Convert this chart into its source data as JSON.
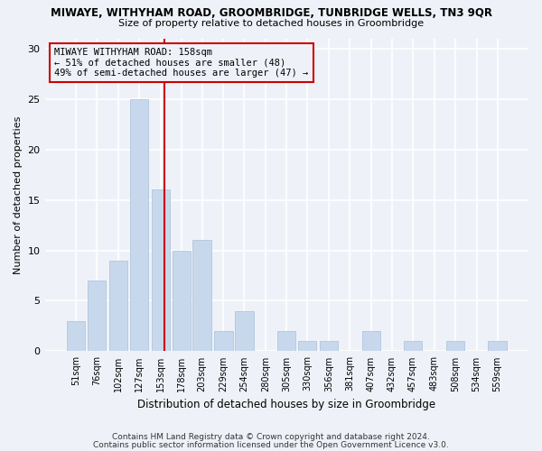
{
  "title1": "MIWAYE, WITHYHAM ROAD, GROOMBRIDGE, TUNBRIDGE WELLS, TN3 9QR",
  "title2": "Size of property relative to detached houses in Groombridge",
  "xlabel": "Distribution of detached houses by size in Groombridge",
  "ylabel": "Number of detached properties",
  "footer1": "Contains HM Land Registry data © Crown copyright and database right 2024.",
  "footer2": "Contains public sector information licensed under the Open Government Licence v3.0.",
  "annotation_line1": "MIWAYE WITHYHAM ROAD: 158sqm",
  "annotation_line2": "← 51% of detached houses are smaller (48)",
  "annotation_line3": "49% of semi-detached houses are larger (47) →",
  "bar_color": "#c8d8ec",
  "bar_edge_color": "#a8c0d8",
  "vline_color": "#cc0000",
  "vline_x": 158,
  "categories": [
    51,
    76,
    102,
    127,
    153,
    178,
    203,
    229,
    254,
    280,
    305,
    330,
    356,
    381,
    407,
    432,
    457,
    483,
    508,
    534,
    559
  ],
  "values": [
    3,
    7,
    9,
    25,
    16,
    10,
    11,
    2,
    4,
    0,
    2,
    1,
    1,
    0,
    2,
    0,
    1,
    0,
    1,
    0,
    1
  ],
  "ylim": [
    0,
    31
  ],
  "yticks": [
    0,
    5,
    10,
    15,
    20,
    25,
    30
  ],
  "background_color": "#eef2f8",
  "grid_color": "#ffffff",
  "figsize": [
    6.0,
    5.0
  ],
  "dpi": 100
}
